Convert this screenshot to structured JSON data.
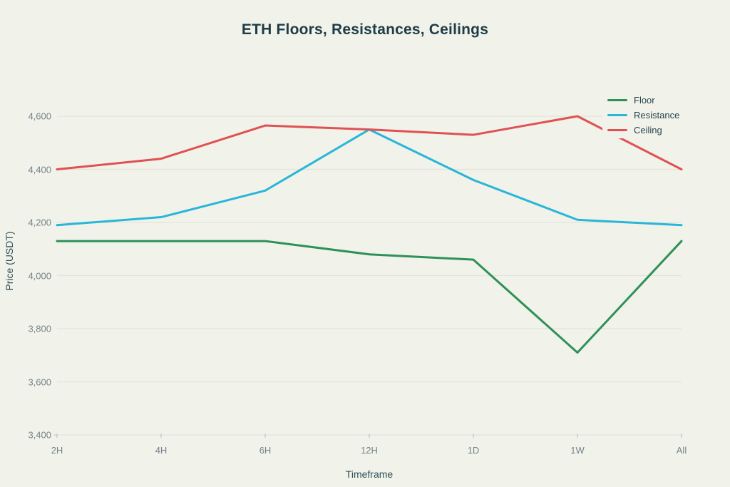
{
  "chart_data": {
    "type": "line",
    "title": "ETH Floors, Resistances, Ceilings",
    "xlabel": "Timeframe",
    "ylabel": "Price (USDT)",
    "categories": [
      "2H",
      "4H",
      "6H",
      "12H",
      "1D",
      "1W",
      "All"
    ],
    "series": [
      {
        "name": "Floor",
        "color": "#2e9158",
        "values": [
          4130,
          4130,
          4130,
          4080,
          4060,
          3710,
          4130
        ]
      },
      {
        "name": "Resistance",
        "color": "#29b6d8",
        "values": [
          4190,
          4220,
          4320,
          4550,
          4360,
          4210,
          4190
        ]
      },
      {
        "name": "Ceiling",
        "color": "#e05151",
        "values": [
          4400,
          4440,
          4565,
          4550,
          4530,
          4600,
          4400
        ]
      }
    ],
    "ylim": [
      3400,
      4600
    ],
    "ytick_step": 200,
    "ytick_labels": [
      "3,400",
      "3,600",
      "3,800",
      "4,000",
      "4,200",
      "4,400",
      "4,600"
    ],
    "grid": "horizontal",
    "legend_position": "top-right"
  },
  "colors": {
    "background": "#f1f2ea",
    "title_text": "#1e3d47",
    "axis_title_text": "#2f4f58",
    "tick_text": "#75838a",
    "gridline": "#e2e4da",
    "tick_mark": "#c3c7bf"
  }
}
